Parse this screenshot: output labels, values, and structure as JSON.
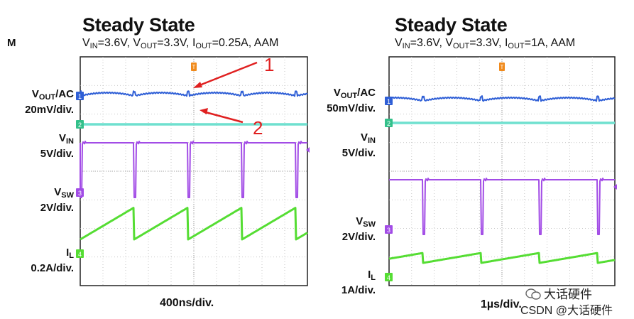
{
  "watermarks": {
    "wechat": "大话硬件",
    "csdn": "CSDN @大话硬件"
  },
  "chart_data": [
    {
      "type": "line",
      "title": "Steady State",
      "mode_label": "M",
      "conditions": {
        "vin_sub": "IN",
        "vin_value": "=3.6V, ",
        "vout_sub": "OUT",
        "vout_value": "=3.3V, ",
        "iout_sub": "OUT",
        "iout_value": "=0.25A, AAM"
      },
      "xlabel": "400ns/div.",
      "grid": true,
      "divisions": {
        "x": 10,
        "y": 8
      },
      "channels": [
        {
          "id": "1",
          "name_sub": "OUT",
          "name_suffix": "/AC",
          "scale": "20mV/div.",
          "color": "#2f5fd6",
          "waveform": "ripple"
        },
        {
          "id": "2",
          "name_sub": "IN",
          "name_suffix": "",
          "scale": "5V/div.",
          "color": "#33c08a",
          "waveform": "dc"
        },
        {
          "id": "3",
          "name_sub": "SW",
          "name_suffix": "",
          "scale": "2V/div.",
          "color": "#a24ce6",
          "waveform": "switch"
        },
        {
          "id": "4",
          "name_sub": "L",
          "name_suffix": "",
          "scale": "0.2A/div.",
          "color": "#55dd33",
          "waveform": "sawtooth"
        }
      ],
      "annotations": [
        {
          "label": "1",
          "color": "#e02020"
        },
        {
          "label": "2",
          "color": "#e02020"
        }
      ],
      "trigger_marker": "T"
    },
    {
      "type": "line",
      "title": "Steady State",
      "conditions": {
        "vin_sub": "IN",
        "vin_value": "=3.6V, ",
        "vout_sub": "OUT",
        "vout_value": "=3.3V, ",
        "iout_sub": "OUT",
        "iout_value": "=1A, AAM"
      },
      "xlabel": "1µs/div.",
      "grid": true,
      "divisions": {
        "x": 10,
        "y": 8
      },
      "channels": [
        {
          "id": "1",
          "name_sub": "OUT",
          "name_suffix": "/AC",
          "scale": "50mV/div.",
          "color": "#2f5fd6",
          "waveform": "ripple"
        },
        {
          "id": "2",
          "name_sub": "IN",
          "name_suffix": "",
          "scale": "5V/div.",
          "color": "#33c08a",
          "waveform": "dc"
        },
        {
          "id": "3",
          "name_sub": "SW",
          "name_suffix": "",
          "scale": "2V/div.",
          "color": "#a24ce6",
          "waveform": "switch"
        },
        {
          "id": "4",
          "name_sub": "L",
          "name_suffix": "",
          "scale": "1A/div.",
          "color": "#55dd33",
          "waveform": "ramp"
        }
      ],
      "trigger_marker": "T"
    }
  ]
}
